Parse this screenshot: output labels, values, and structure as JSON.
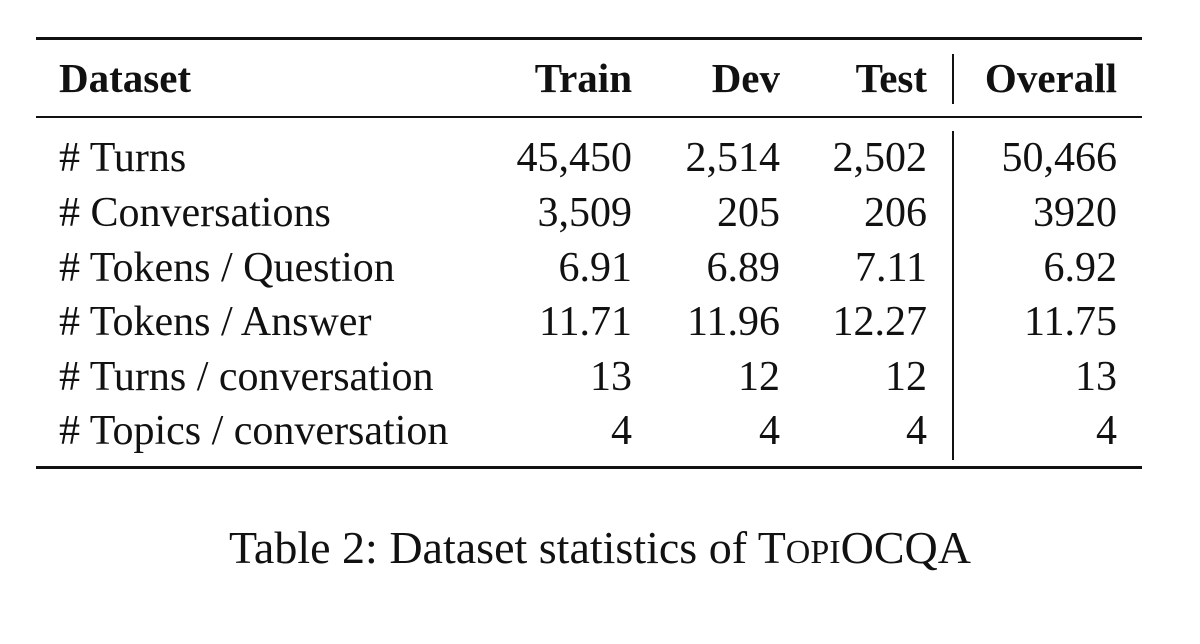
{
  "table": {
    "headers": [
      "Dataset",
      "Train",
      "Dev",
      "Test",
      "Overall"
    ],
    "rows": [
      {
        "label": "# Turns",
        "train": "45,450",
        "dev": "2,514",
        "test": "2,502",
        "overall": "50,466"
      },
      {
        "label": "# Conversations",
        "train": "3,509",
        "dev": "205",
        "test": "206",
        "overall": "3920"
      },
      {
        "label": "# Tokens / Question",
        "train": "6.91",
        "dev": "6.89",
        "test": "7.11",
        "overall": "6.92"
      },
      {
        "label": "# Tokens / Answer",
        "train": "11.71",
        "dev": "11.96",
        "test": "12.27",
        "overall": "11.75"
      },
      {
        "label": "# Turns / conversation",
        "train": "13",
        "dev": "12",
        "test": "12",
        "overall": "13"
      },
      {
        "label": "# Topics / conversation",
        "train": "4",
        "dev": "4",
        "test": "4",
        "overall": "4"
      }
    ]
  },
  "caption": {
    "prefix": "Table 2: Dataset statistics of ",
    "name_parts": [
      "T",
      "OPI",
      "OCQA"
    ]
  }
}
